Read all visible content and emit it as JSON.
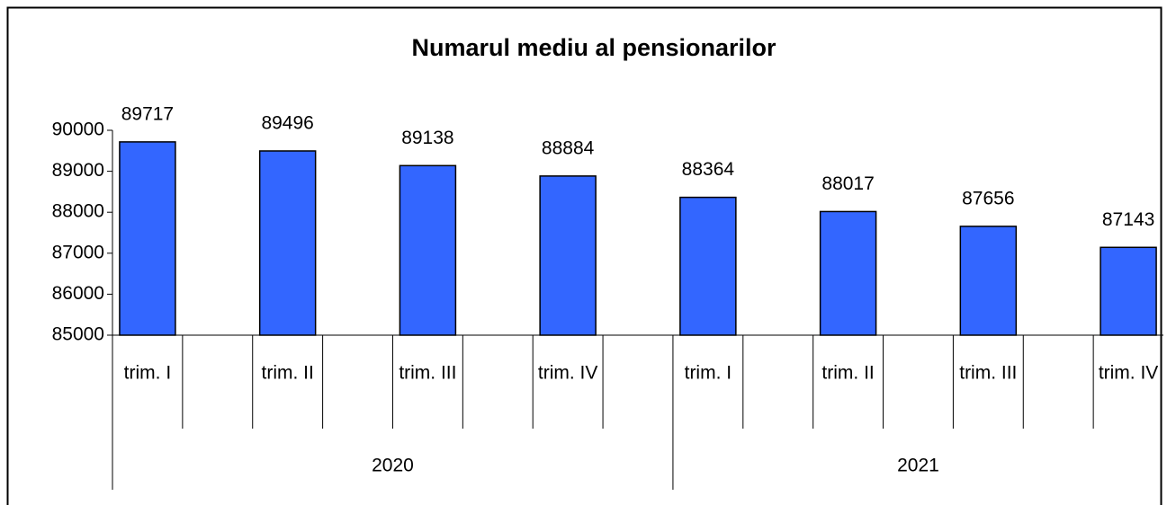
{
  "chart_data": {
    "type": "bar",
    "title": "Numarul mediu al pensionarilor",
    "groups": [
      {
        "name": "2020",
        "categories": [
          "trim. I",
          null,
          "trim. II",
          null,
          "trim. III",
          null,
          "trim. IV",
          null
        ],
        "values": [
          89717,
          null,
          89496,
          null,
          89138,
          null,
          88884,
          null
        ]
      },
      {
        "name": "2021",
        "categories": [
          "trim. I",
          null,
          "trim. II",
          null,
          "trim. III",
          null,
          "trim. IV"
        ],
        "values": [
          88364,
          null,
          88017,
          null,
          87656,
          null,
          87143
        ]
      }
    ],
    "color": "#3366ff",
    "ylim": [
      85000,
      90000
    ],
    "yticks": [
      85000,
      86000,
      87000,
      88000,
      89000,
      90000
    ],
    "grid": false
  }
}
